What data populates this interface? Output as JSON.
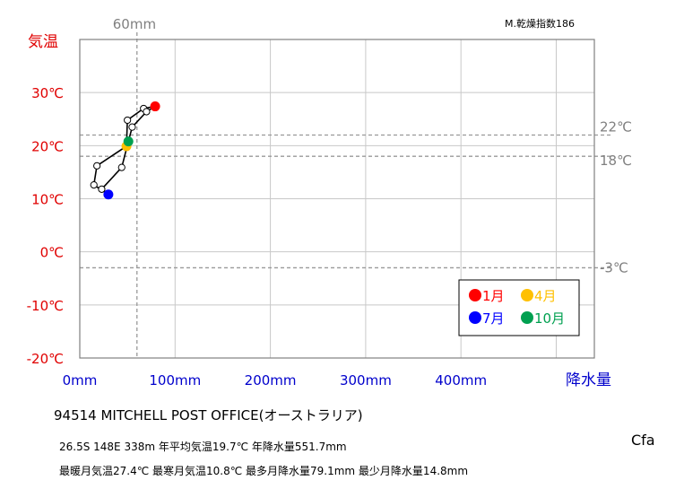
{
  "chart_data": {
    "type": "climograph",
    "y_axis": {
      "label": "気温",
      "unit": "℃",
      "range": [
        -20,
        40
      ],
      "ticks": [
        30,
        20,
        10,
        0,
        -10,
        -20
      ],
      "tick_labels": [
        "30℃",
        "20℃",
        "10℃",
        "0℃",
        "-10℃",
        "-20℃"
      ],
      "color": "#e00000"
    },
    "x_axis": {
      "label": "降水量",
      "unit": "mm",
      "range": [
        0,
        540
      ],
      "ticks": [
        0,
        100,
        200,
        300,
        400
      ],
      "tick_labels": [
        "0mm",
        "100mm",
        "200mm",
        "300mm",
        "400mm"
      ],
      "color": "#0000cc"
    },
    "reference_lines": {
      "horizontal": [
        {
          "value": 22,
          "label": "22℃"
        },
        {
          "value": 18,
          "label": "18℃"
        },
        {
          "value": -3,
          "label": "-3℃"
        }
      ],
      "vertical": [
        {
          "value": 60,
          "label": "60mm"
        }
      ]
    },
    "series": [
      {
        "months": [
          1,
          2,
          3,
          4,
          5,
          6,
          7,
          8,
          9,
          10,
          11,
          12
        ],
        "precipitation": [
          79.1,
          67,
          50,
          49,
          18,
          14.8,
          30,
          23,
          44,
          51,
          55,
          70
        ],
        "temperature": [
          27.4,
          27,
          24.8,
          19.9,
          16.2,
          12.6,
          10.8,
          11.8,
          15.9,
          20.8,
          23.5,
          26.4
        ]
      }
    ],
    "highlighted_months": [
      {
        "month": 1,
        "label": "1月",
        "color": "#ff0000"
      },
      {
        "month": 4,
        "label": "4月",
        "color": "#ffc000"
      },
      {
        "month": 7,
        "label": "7月",
        "color": "#0000ff"
      },
      {
        "month": 10,
        "label": "10月",
        "color": "#00a050"
      }
    ],
    "legend_position": "bottom-right",
    "grid": true
  },
  "dryness_index": "M.乾燥指数186",
  "climate_class": "Cfa",
  "station": "94514  MITCHELL  POST OFFICE(オーストラリア)",
  "summary_line1": "26.5S  148E 338m  年平均気温19.7℃ 年降水量551.7mm",
  "summary_line2": "最暖月気温27.4℃ 最寒月気温10.8℃ 最多月降水量79.1mm 最少月降水量14.8mm"
}
